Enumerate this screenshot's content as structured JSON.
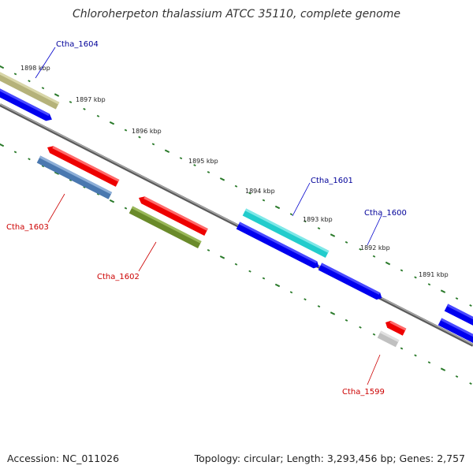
{
  "header": {
    "title": "Chloroherpeton thalassium ATCC 35110, complete genome"
  },
  "footer": {
    "accession": "Accession: NC_011026",
    "summary": "Topology: circular; Length: 3,293,456 bp; Genes: 2,757"
  },
  "scale": {
    "labels": [
      "1898 kbp",
      "1897 kbp",
      "1896 kbp",
      "1895 kbp",
      "1894 kbp",
      "1893 kbp",
      "1892 kbp",
      "1891 kbp"
    ]
  },
  "genes": [
    {
      "id": "Ctha_1604",
      "strand": "plus",
      "color": "#000099"
    },
    {
      "id": "Ctha_1603",
      "strand": "minus",
      "color": "#cc0000"
    },
    {
      "id": "Ctha_1602",
      "strand": "minus",
      "color": "#cc0000"
    },
    {
      "id": "Ctha_1601",
      "strand": "plus",
      "color": "#000099"
    },
    {
      "id": "Ctha_1600",
      "strand": "plus",
      "color": "#000099"
    },
    {
      "id": "Ctha_1599",
      "strand": "minus",
      "color": "#cc0000"
    }
  ],
  "colors": {
    "backbone": "#7a7a7a",
    "tick": "#2a7a2a",
    "blue_feature": "#0000ee",
    "red_feature": "#ee0000",
    "cyan_feature": "#22cccc",
    "olive_feature": "#b5b27a",
    "steel_feature": "#4a78b0",
    "green_feature": "#6a8a2a",
    "gray_feature": "#c0c0c0"
  }
}
